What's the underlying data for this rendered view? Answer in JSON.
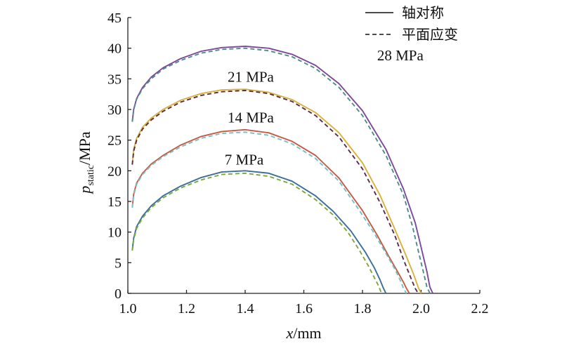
{
  "chart_data": {
    "type": "line",
    "xlabel": {
      "var": "x",
      "unit": "/mm"
    },
    "ylabel": {
      "var": "p",
      "sub": "static",
      "unit": "/MPa"
    },
    "xlim": [
      1.0,
      2.2
    ],
    "ylim": [
      0,
      45
    ],
    "xticks": [
      "1.0",
      "1.2",
      "1.4",
      "1.6",
      "1.8",
      "2.0",
      "2.2"
    ],
    "yticks": [
      "0",
      "5",
      "10",
      "15",
      "20",
      "25",
      "30",
      "35",
      "40",
      "45"
    ],
    "grid": false,
    "legend": {
      "position": "top-right",
      "entries": [
        {
          "label": "轴对称",
          "style": "solid"
        },
        {
          "label": "平面应变",
          "style": "dashed"
        }
      ]
    },
    "annotations": [
      {
        "text": "28 MPa",
        "x": 1.85,
        "y": 38.0
      },
      {
        "text": "21 MPa",
        "x": 1.34,
        "y": 34.5
      },
      {
        "text": "14 MPa",
        "x": 1.34,
        "y": 27.9
      },
      {
        "text": "7 MPa",
        "x": 1.33,
        "y": 21.0
      }
    ],
    "series": [
      {
        "style": "solid",
        "color": "#7b4a9b",
        "x": [
          1.015,
          1.02,
          1.03,
          1.05,
          1.08,
          1.12,
          1.18,
          1.25,
          1.32,
          1.4,
          1.48,
          1.56,
          1.64,
          1.72,
          1.8,
          1.88,
          1.94,
          1.98,
          2.0,
          2.02,
          2.03,
          2.04
        ],
        "y": [
          28.0,
          30.0,
          31.8,
          33.6,
          35.3,
          36.8,
          38.3,
          39.5,
          40.1,
          40.3,
          40.0,
          39.0,
          37.2,
          34.2,
          29.8,
          23.5,
          17.0,
          11.5,
          7.5,
          3.5,
          1.0,
          0
        ]
      },
      {
        "style": "dashed",
        "color": "#4e8c8c",
        "x": [
          1.015,
          1.02,
          1.03,
          1.05,
          1.08,
          1.12,
          1.18,
          1.25,
          1.32,
          1.4,
          1.48,
          1.56,
          1.64,
          1.72,
          1.8,
          1.88,
          1.94,
          1.97,
          1.99,
          2.01,
          2.02,
          2.03
        ],
        "y": [
          28.0,
          30.0,
          31.7,
          33.4,
          35.0,
          36.6,
          38.0,
          39.2,
          39.8,
          40.0,
          39.6,
          38.6,
          36.7,
          33.6,
          29.0,
          22.5,
          16.0,
          11.0,
          7.0,
          3.0,
          1.0,
          0
        ]
      },
      {
        "style": "solid",
        "color": "#d9b23a",
        "x": [
          1.015,
          1.02,
          1.03,
          1.05,
          1.08,
          1.12,
          1.18,
          1.25,
          1.32,
          1.4,
          1.48,
          1.56,
          1.64,
          1.72,
          1.8,
          1.86,
          1.91,
          1.95,
          1.975,
          1.99,
          2.0
        ],
        "y": [
          21.0,
          23.5,
          25.3,
          27.1,
          28.6,
          30.0,
          31.5,
          32.6,
          33.2,
          33.3,
          32.8,
          31.6,
          29.5,
          26.2,
          21.3,
          16.0,
          10.5,
          6.0,
          3.0,
          1.0,
          0
        ]
      },
      {
        "style": "dashed",
        "color": "#5a2a4a",
        "x": [
          1.015,
          1.02,
          1.03,
          1.05,
          1.08,
          1.12,
          1.18,
          1.25,
          1.32,
          1.4,
          1.48,
          1.56,
          1.64,
          1.72,
          1.8,
          1.86,
          1.91,
          1.94,
          1.965,
          1.98,
          1.99
        ],
        "y": [
          21.0,
          23.2,
          25.0,
          26.8,
          28.3,
          29.7,
          31.2,
          32.3,
          32.9,
          33.1,
          32.6,
          31.3,
          29.0,
          25.5,
          20.3,
          14.8,
          9.5,
          5.5,
          2.5,
          0.8,
          0
        ]
      },
      {
        "style": "solid",
        "color": "#c65b45",
        "x": [
          1.015,
          1.02,
          1.03,
          1.05,
          1.08,
          1.12,
          1.18,
          1.25,
          1.32,
          1.4,
          1.48,
          1.56,
          1.64,
          1.72,
          1.8,
          1.85,
          1.89,
          1.92,
          1.94,
          1.95,
          1.96
        ],
        "y": [
          14.0,
          16.2,
          18.0,
          19.6,
          21.1,
          22.5,
          24.2,
          25.6,
          26.4,
          26.7,
          26.2,
          24.8,
          22.5,
          18.8,
          13.5,
          9.5,
          6.0,
          3.5,
          1.8,
          0.8,
          0
        ]
      },
      {
        "style": "dashed",
        "color": "#72c1c7",
        "x": [
          1.015,
          1.02,
          1.03,
          1.05,
          1.08,
          1.12,
          1.18,
          1.25,
          1.32,
          1.4,
          1.48,
          1.56,
          1.64,
          1.72,
          1.79,
          1.84,
          1.88,
          1.91,
          1.93,
          1.94,
          1.95
        ],
        "y": [
          14.0,
          16.0,
          17.8,
          19.4,
          20.9,
          22.3,
          23.9,
          25.3,
          26.1,
          26.3,
          25.8,
          24.4,
          22.0,
          18.3,
          13.5,
          9.8,
          6.5,
          4.0,
          2.0,
          0.8,
          0
        ]
      },
      {
        "style": "solid",
        "color": "#3a6f99",
        "x": [
          1.015,
          1.02,
          1.03,
          1.05,
          1.08,
          1.12,
          1.18,
          1.25,
          1.32,
          1.4,
          1.48,
          1.56,
          1.64,
          1.7,
          1.76,
          1.81,
          1.84,
          1.86,
          1.87,
          1.88
        ],
        "y": [
          7.0,
          9.0,
          10.9,
          12.6,
          14.3,
          15.9,
          17.5,
          18.9,
          19.8,
          20.0,
          19.6,
          18.3,
          15.9,
          13.4,
          10.2,
          6.7,
          4.2,
          2.2,
          1.0,
          0
        ]
      },
      {
        "style": "dashed",
        "color": "#7aa83a",
        "x": [
          1.015,
          1.02,
          1.03,
          1.05,
          1.08,
          1.12,
          1.18,
          1.25,
          1.32,
          1.4,
          1.48,
          1.56,
          1.64,
          1.7,
          1.75,
          1.79,
          1.82,
          1.84,
          1.855,
          1.865
        ],
        "y": [
          7.0,
          8.8,
          10.6,
          12.3,
          14.0,
          15.6,
          17.2,
          18.5,
          19.4,
          19.6,
          19.1,
          17.8,
          15.3,
          12.8,
          10.0,
          7.0,
          4.5,
          2.6,
          1.2,
          0
        ]
      }
    ]
  }
}
